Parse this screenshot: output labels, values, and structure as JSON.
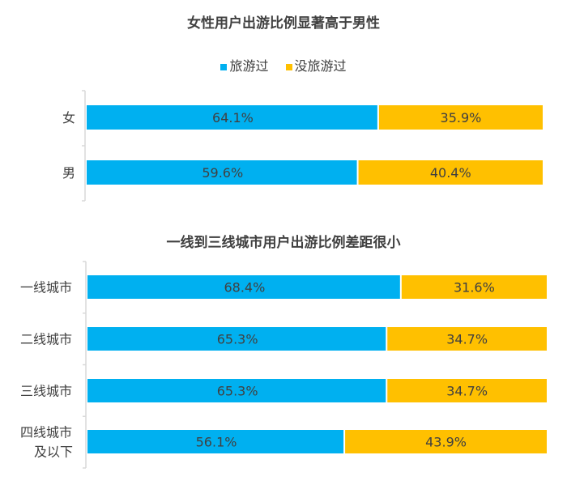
{
  "colors": {
    "travelled": "#00B0F0",
    "not_travelled": "#FFC000",
    "axis": "#D9D9D9",
    "text": "#404040"
  },
  "legend": [
    "旅游过",
    "没旅游过"
  ],
  "chart_data": [
    {
      "type": "bar",
      "stacked": true,
      "orientation": "horizontal",
      "percent": true,
      "title": "女性用户出游比例显著高于男性",
      "categories": [
        "女",
        "男"
      ],
      "series": [
        {
          "name": "旅游过",
          "values": [
            64.1,
            59.6
          ]
        },
        {
          "name": "没旅游过",
          "values": [
            35.9,
            40.4
          ]
        }
      ],
      "labels": [
        [
          "64.1%",
          "59.6%"
        ],
        [
          "35.9%",
          "40.4%"
        ]
      ],
      "xlim": [
        0,
        100
      ],
      "legend": "top"
    },
    {
      "type": "bar",
      "stacked": true,
      "orientation": "horizontal",
      "percent": true,
      "title": "一线到三线城市用户出游比例差距很小",
      "categories": [
        "一线城市",
        "二线城市",
        "三线城市",
        "四线城市及以下"
      ],
      "category_lines": [
        [
          "一线城市"
        ],
        [
          "二线城市"
        ],
        [
          "三线城市"
        ],
        [
          "四线城市",
          "及以下"
        ]
      ],
      "series": [
        {
          "name": "旅游过",
          "values": [
            68.4,
            65.3,
            65.3,
            56.1
          ]
        },
        {
          "name": "没旅游过",
          "values": [
            31.6,
            34.7,
            34.7,
            43.9
          ]
        }
      ],
      "labels": [
        [
          "68.4%",
          "65.3%",
          "65.3%",
          "56.1%"
        ],
        [
          "31.6%",
          "34.7%",
          "34.7%",
          "43.9%"
        ]
      ],
      "xlim": [
        0,
        100
      ]
    }
  ]
}
